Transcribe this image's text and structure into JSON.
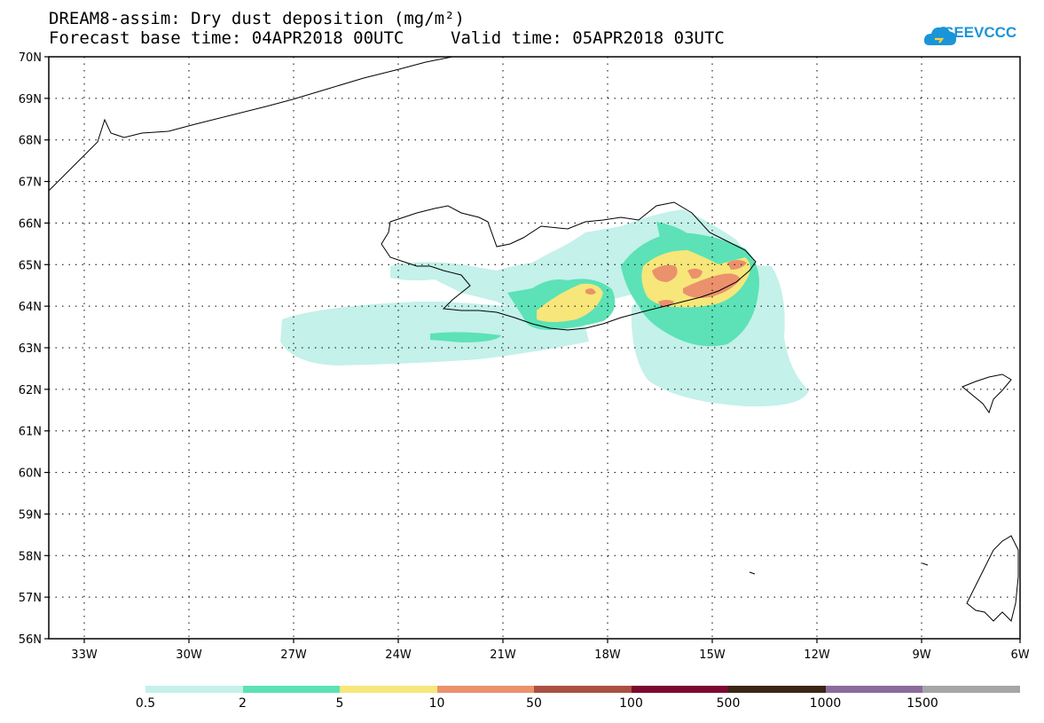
{
  "title_line1": "DREAM8-assim: Dry dust deposition (mg/m²)",
  "forecast_base": "Forecast base time: 04APR2018 00UTC",
  "valid_time": "Valid time: 05APR2018 03UTC",
  "logo": {
    "text": "SEEVCCC",
    "icon": "cloud-icon",
    "color": "#1b94d8"
  },
  "axes": {
    "lat_labels": [
      "70N",
      "69N",
      "68N",
      "67N",
      "66N",
      "65N",
      "64N",
      "63N",
      "62N",
      "61N",
      "60N",
      "59N",
      "58N",
      "57N",
      "56N"
    ],
    "lon_labels": [
      "33W",
      "30W",
      "27W",
      "24W",
      "21W",
      "18W",
      "15W",
      "12W",
      "9W",
      "6W"
    ]
  },
  "legend": {
    "labels": [
      "0.5",
      "2",
      "5",
      "10",
      "50",
      "100",
      "500",
      "1000",
      "1500"
    ],
    "colors": [
      "#c4f1ea",
      "#5ce2b6",
      "#f7e67a",
      "#eb916c",
      "#aa5042",
      "#7c0a2e",
      "#3a2614",
      "#8b6b9c",
      "#a6a6a6"
    ]
  }
}
